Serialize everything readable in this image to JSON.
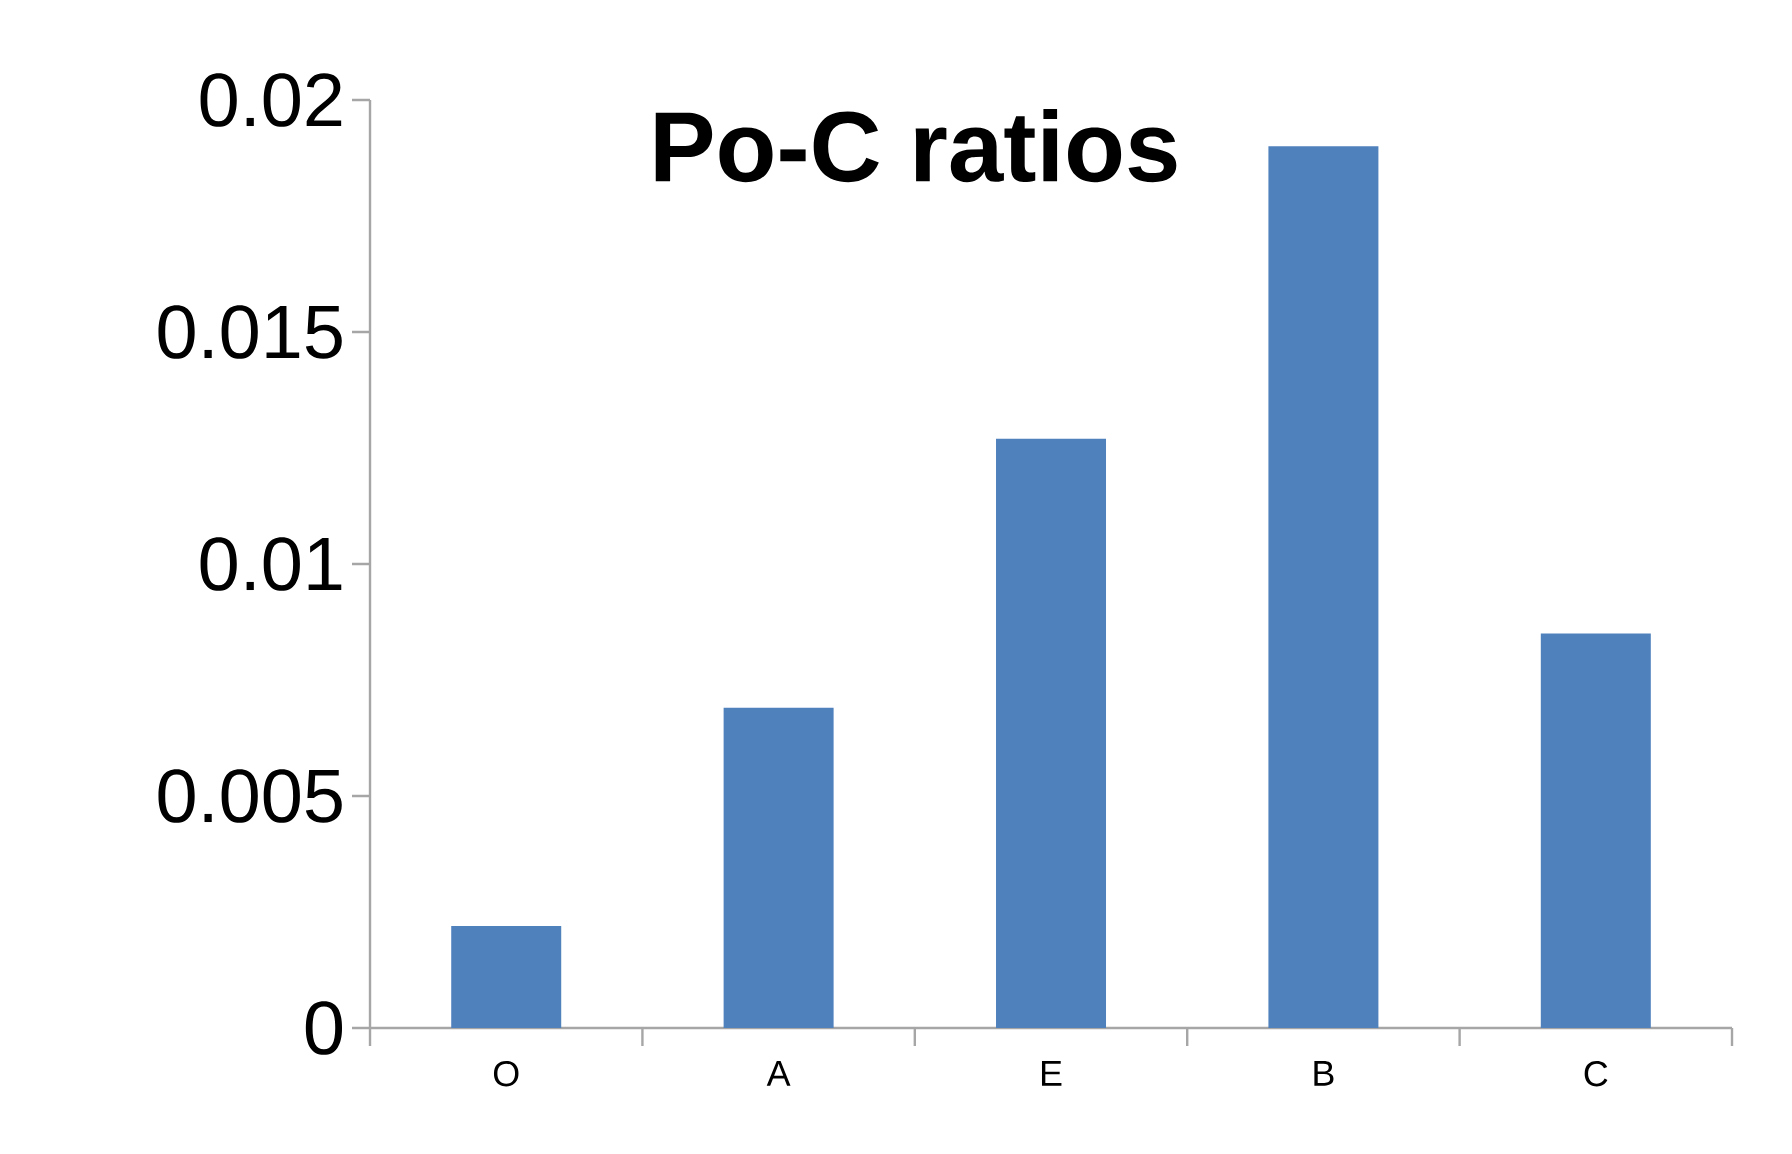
{
  "chart_data": {
    "type": "bar",
    "title": "Po-C ratios",
    "categories": [
      "O",
      "A",
      "E",
      "B",
      "C"
    ],
    "values": [
      0.0022,
      0.0069,
      0.0127,
      0.019,
      0.0085
    ],
    "color": "#4f81bd",
    "ylim": [
      0,
      0.02
    ],
    "yticks": [
      0,
      0.005,
      0.01,
      0.015,
      0.02
    ],
    "grid": false
  }
}
